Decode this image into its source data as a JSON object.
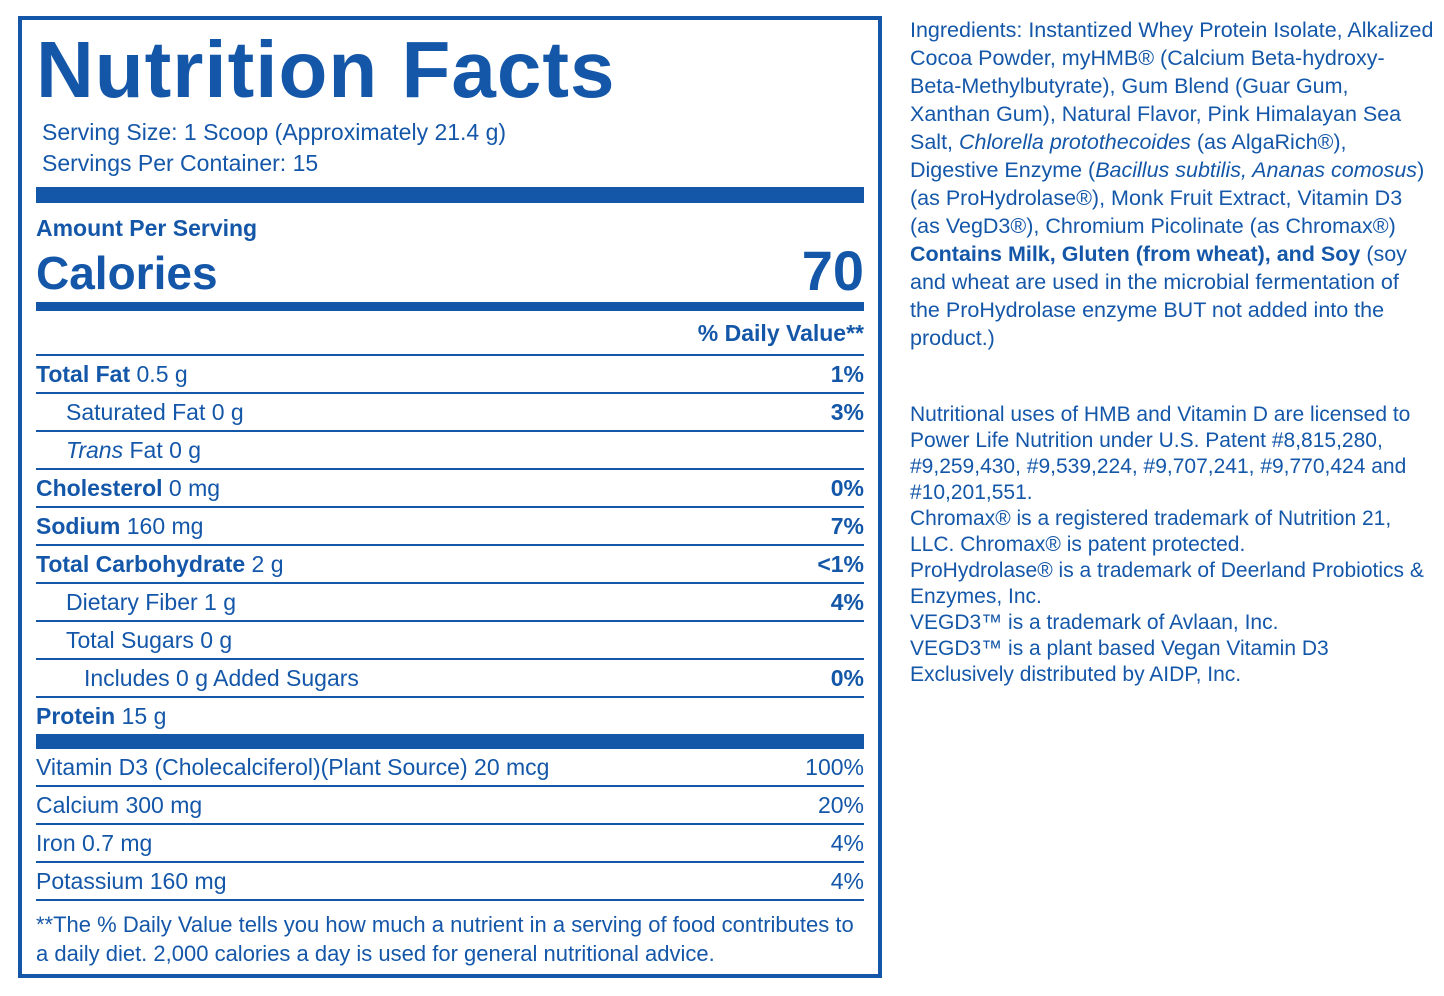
{
  "colors": {
    "brand": "#1457a9"
  },
  "label": {
    "title": "Nutrition Facts",
    "serving_size": "Serving Size: 1 Scoop (Approximately 21.4 g)",
    "servings_per_container": "Servings Per Container: 15",
    "amount_per_serving": "Amount Per Serving",
    "calories_label": "Calories",
    "calories_value": "70",
    "daily_value_header": "% Daily Value**",
    "rows": [
      {
        "b": "Total Fat",
        "i": "",
        "r": " 0.5 g",
        "dv": "1%"
      },
      {
        "b": "",
        "i": "",
        "r": "Saturated Fat 0 g",
        "dv": "3%"
      },
      {
        "b": "",
        "i": "Trans",
        "r": " Fat 0 g",
        "dv": ""
      },
      {
        "b": "Cholesterol",
        "i": "",
        "r": " 0 mg",
        "dv": "0%"
      },
      {
        "b": "Sodium",
        "i": "",
        "r": " 160 mg",
        "dv": "7%"
      },
      {
        "b": "Total Carbohydrate",
        "i": "",
        "r": " 2 g",
        "dv": "<1%"
      },
      {
        "b": "",
        "i": "",
        "r": "Dietary Fiber 1 g",
        "dv": "4%"
      },
      {
        "b": "",
        "i": "",
        "r": "Total Sugars 0 g",
        "dv": ""
      },
      {
        "b": "",
        "i": "",
        "r": "Includes 0 g Added Sugars",
        "dv": "0%"
      },
      {
        "b": "Protein",
        "i": "",
        "r": " 15 g",
        "dv": ""
      }
    ],
    "micros": [
      {
        "r": "Vitamin D3 (Cholecalciferol)(Plant Source) 20 mcg",
        "dv": "100%"
      },
      {
        "r": "Calcium 300 mg",
        "dv": "20%"
      },
      {
        "r": "Iron 0.7 mg",
        "dv": "4%"
      },
      {
        "r": "Potassium 160 mg",
        "dv": "4%"
      }
    ],
    "footnote": "**The % Daily Value tells you how much a nutrient in a serving of food contributes to a daily diet. 2,000 calories a day is used for general nutritional advice."
  },
  "side": {
    "ingredients_segments": [
      {
        "t": "Ingredients: Instantized Whey Protein Isolate, Alkalized Cocoa Powder, myHMB® (Calcium Beta-hydroxy-Beta-Methylbutyrate), Gum Blend (Guar Gum, Xanthan Gum), Natural Flavor, Pink Himalayan Sea Salt, "
      },
      {
        "t": "Chlorella protothecoides"
      },
      {
        "t": " (as AlgaRich®), Digestive Enzyme ("
      },
      {
        "t": "Bacillus subtilis, Ananas comosus"
      },
      {
        "t": ") (as ProHydrolase®), Monk Fruit Extract, Vitamin D3 (as VegD3®), Chromium Picolinate (as Chromax®)"
      }
    ],
    "allergen_bold": "Contains Milk, Gluten (from wheat), and Soy",
    "allergen_rest": " (soy and wheat are used in the microbial fermentation of the ProHydrolase enzyme BUT not added into the product.)",
    "legal": [
      "Nutritional uses of HMB and Vitamin D are licensed to Power Life Nutrition under U.S. Patent #8,815,280, #9,259,430, #9,539,224, #9,707,241, #9,770,424 and #10,201,551.",
      "Chromax® is a registered trademark of Nutrition 21, LLC. Chromax® is patent protected.",
      "ProHydrolase® is a trademark of Deerland Probiotics & Enzymes, Inc.",
      "VEGD3™ is a trademark of Avlaan, Inc.",
      "VEGD3™ is a plant based Vegan Vitamin D3 Exclusively distributed by AIDP, Inc."
    ]
  }
}
